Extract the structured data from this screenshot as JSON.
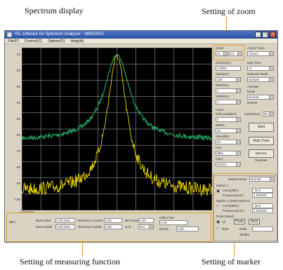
{
  "callouts": {
    "spectrum": "Spectrum display",
    "zoom": "Setting of zoom",
    "measuring": "Setting of measuring function",
    "marker": "Setting of marker"
  },
  "window": {
    "title": "ISL software for Spectrum Analyzer - MMG0001",
    "menu": [
      "File(F)",
      "Control(C)",
      "Option(O)",
      "Help(H)"
    ]
  },
  "spectrum": {
    "y_labels": [
      "-10",
      "-20",
      "-30",
      "-40",
      "-50",
      "-60",
      "-70",
      "-80",
      "-90",
      "-100"
    ],
    "colors": {
      "background": "#000000",
      "grid": "#b8b8b8",
      "green_trace": "#1fa35c",
      "yellow_trace": "#e8d400"
    }
  },
  "right_panel": {
    "zoom_label": "Zoom",
    "zoom_left": "x1",
    "zoom_right": "x1",
    "active_trace_label": "Active Trace",
    "active_trace_value": "Trace1",
    "center_label": "Center(Hz)",
    "center_value": "1.0000",
    "span_label": "Span(Hz)",
    "span_value": "100",
    "rbw_label": "RBW(Hz)",
    "rbw_value": "1",
    "vbw_label": "VBW(Hz)",
    "vbw_value": "1",
    "sweep_time_label": "Swp Time",
    "sweep_time_value": "1s",
    "detector_label": "Detector Mode",
    "detector_value": "Sample",
    "average_label": "Average",
    "mode_label": "Mode",
    "mode_value": "Normal",
    "restart_label": "Restart",
    "level_label": "Level",
    "ref_level_label": "RefLevel(dBm)",
    "ref_level_value": "0",
    "scale_label": "dB/Div",
    "scale_value": "10",
    "atten_label": "Atten(dB)",
    "atten_value": "10",
    "unit_label": "Unit",
    "unit_value": "dBm",
    "input_label": "Input",
    "input_value": "50ohm",
    "impedance_label": "Impedance",
    "impedance_value": "50",
    "start_button": "Start",
    "auto_tune_button": "Auto Tune",
    "memory_button": "Memory Function"
  },
  "marker_panel": {
    "marker_mode_label": "Marker Mode",
    "marker_mode_value": "Normal",
    "marker1_label": "Marker 1",
    "level_label": "Level(dBm)",
    "level_value": "-35.5",
    "freq_label": "Frequency(Hz)",
    "freq_value": "1.000000",
    "marker2_label": "Marker 2 (Delta Marker)",
    "level2_value": "-35.5",
    "freq2_value": "1.000000",
    "peak_search_label": "Peak Search",
    "all_button": "All",
    "peak_button": "Peak",
    "next_button": "Next",
    "data_label": "Data",
    "delta_label": "Delta",
    "weight_label": "Weight"
  },
  "bottom_panel": {
    "left_code": "dBm",
    "top_code": "0.00 MHz",
    "band_start_label": "Band Start",
    "band_start_value": "0.00 MHz",
    "band_width_label": "Band Width",
    "band_width_value": "0.00 MHz",
    "ref_center_label": "Reference Center",
    "ref_center_value": "0.00",
    "ref_width_label": "Reference Width",
    "ref_width_value": "0.00",
    "bps_rate_label": "BPS Rate",
    "bps_rate_value": "0.00",
    "unit_label": "Unit",
    "unit_value": "kHz",
    "offset_label": "Offset 300",
    "offset_value": "0.00",
    "result_label": "Result",
    "result_value": "0.00"
  }
}
